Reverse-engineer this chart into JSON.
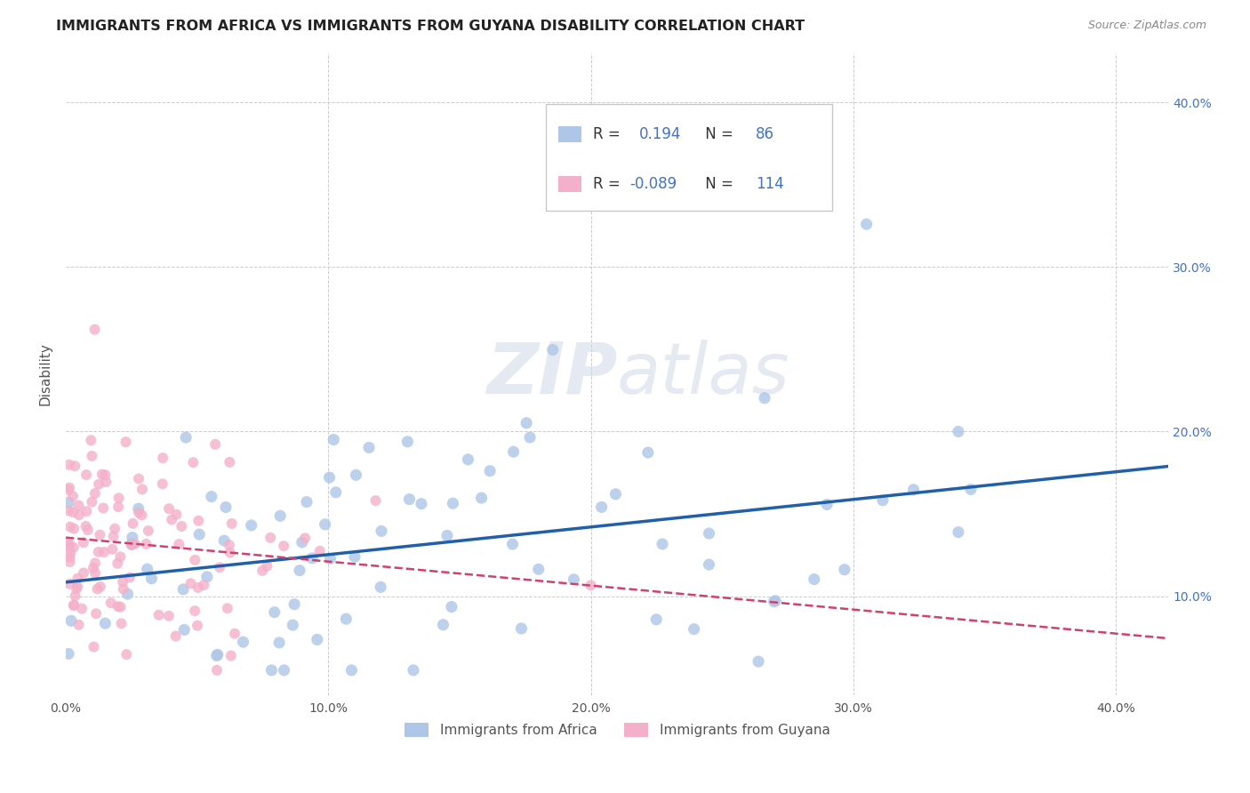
{
  "title": "IMMIGRANTS FROM AFRICA VS IMMIGRANTS FROM GUYANA DISABILITY CORRELATION CHART",
  "source": "Source: ZipAtlas.com",
  "ylabel": "Disability",
  "xlim": [
    0.0,
    0.42
  ],
  "ylim": [
    0.04,
    0.43
  ],
  "africa_R": 0.194,
  "africa_N": 86,
  "guyana_R": -0.089,
  "guyana_N": 114,
  "africa_color": "#aec6e8",
  "africa_line_color": "#2060a8",
  "guyana_color": "#f4b0c8",
  "guyana_line_color": "#d04070",
  "watermark_zip": "ZIP",
  "watermark_atlas": "atlas",
  "background_color": "#ffffff",
  "grid_color": "#cccccc",
  "title_color": "#222222",
  "source_color": "#888888",
  "axis_color": "#555555",
  "right_tick_color": "#4472c4",
  "legend_text_color": "#333333",
  "legend_val_color": "#4472c4"
}
